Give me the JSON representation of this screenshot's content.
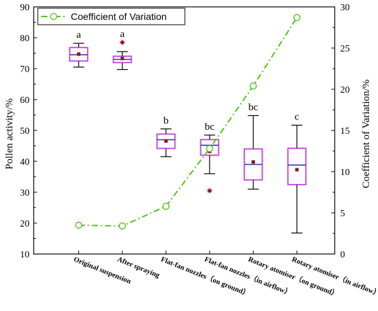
{
  "chart_data": {
    "type": "box",
    "categories": [
      "Original suspension",
      "After spraying",
      "Flat-fan nozzles（on ground）",
      "Flat-fan nozzles（in airflow）",
      "Rotary atomiser（on ground）",
      "Rotary atomiser（in airflow）"
    ],
    "ylabel": "Pollen activity/%",
    "y2label": "Coefficient of Variation/%",
    "ylim": [
      10,
      90
    ],
    "y2lim": [
      0,
      30
    ],
    "yticks": [
      "10",
      "20",
      "30",
      "40",
      "50",
      "60",
      "70",
      "80",
      "90"
    ],
    "y2ticks": [
      "0",
      "5",
      "10",
      "15",
      "20",
      "25",
      "30"
    ],
    "boxes": [
      {
        "whisker_low": 70.5,
        "q1": 72.5,
        "median": 74.5,
        "q3": 76.8,
        "whisker_high": 78.2,
        "mean": 74.7,
        "outliers": []
      },
      {
        "whisker_low": 69.7,
        "q1": 72.0,
        "median": 73.0,
        "q3": 74.0,
        "whisker_high": 75.5,
        "mean": 73.3,
        "outliers": [
          78.5
        ]
      },
      {
        "whisker_low": 41.5,
        "q1": 44.2,
        "median": 47.0,
        "q3": 48.8,
        "whisker_high": 50.5,
        "mean": 46.6,
        "outliers": []
      },
      {
        "whisker_low": 36.0,
        "q1": 42.0,
        "median": 45.2,
        "q3": 47.0,
        "whisker_high": 48.5,
        "mean": 43.2,
        "outliers": [
          30.5
        ]
      },
      {
        "whisker_low": 31.0,
        "q1": 34.0,
        "median": 39.0,
        "q3": 44.0,
        "whisker_high": 54.8,
        "mean": 39.8,
        "outliers": []
      },
      {
        "whisker_low": 16.8,
        "q1": 32.5,
        "median": 38.8,
        "q3": 44.2,
        "whisker_high": 51.7,
        "mean": 37.3,
        "outliers": []
      }
    ],
    "significance": [
      "a",
      "a",
      "b",
      "bc",
      "bc",
      "c"
    ],
    "cv_series": {
      "name": "Coefficient of Variation",
      "axis": "right",
      "values": [
        3.5,
        3.4,
        5.8,
        12.8,
        20.4,
        28.7
      ]
    },
    "legend_position": "top-left",
    "grid": false,
    "colors": {
      "box": "#b12fd6",
      "median": "#2b3aa8",
      "mean": "#8b1a1a",
      "whisker": "#000000",
      "cv_line": "#55c51c",
      "glow": "#f1c7ee"
    }
  }
}
